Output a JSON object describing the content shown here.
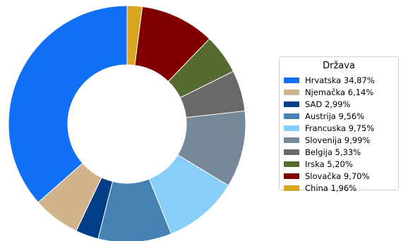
{
  "chart_data": {
    "type": "pie",
    "variant": "donut",
    "legend_title": "Država",
    "legend_position": "right",
    "start_angle_deg": 90,
    "direction": "counterclockwise",
    "slices": [
      {
        "label": "Hrvatska 34,87%",
        "value": 34.87,
        "color": "#1070f5"
      },
      {
        "label": "Njemačka 6,14%",
        "value": 6.14,
        "color": "#d2b48c"
      },
      {
        "label": "SAD 2,99%",
        "value": 2.99,
        "color": "#003f87"
      },
      {
        "label": "Austrija 9,56%",
        "value": 9.56,
        "color": "#4682b4"
      },
      {
        "label": "Francuska 9,75%",
        "value": 9.75,
        "color": "#87cefa"
      },
      {
        "label": "Slovenija 9,99%",
        "value": 9.99,
        "color": "#778899"
      },
      {
        "label": "Belgija 5,33%",
        "value": 5.33,
        "color": "#696969"
      },
      {
        "label": "Irska 5,20%",
        "value": 5.2,
        "color": "#556b2f"
      },
      {
        "label": "Slovačka 9,70%",
        "value": 9.7,
        "color": "#800000"
      },
      {
        "label": "China 1,96%",
        "value": 1.96,
        "color": "#daa520"
      }
    ]
  }
}
